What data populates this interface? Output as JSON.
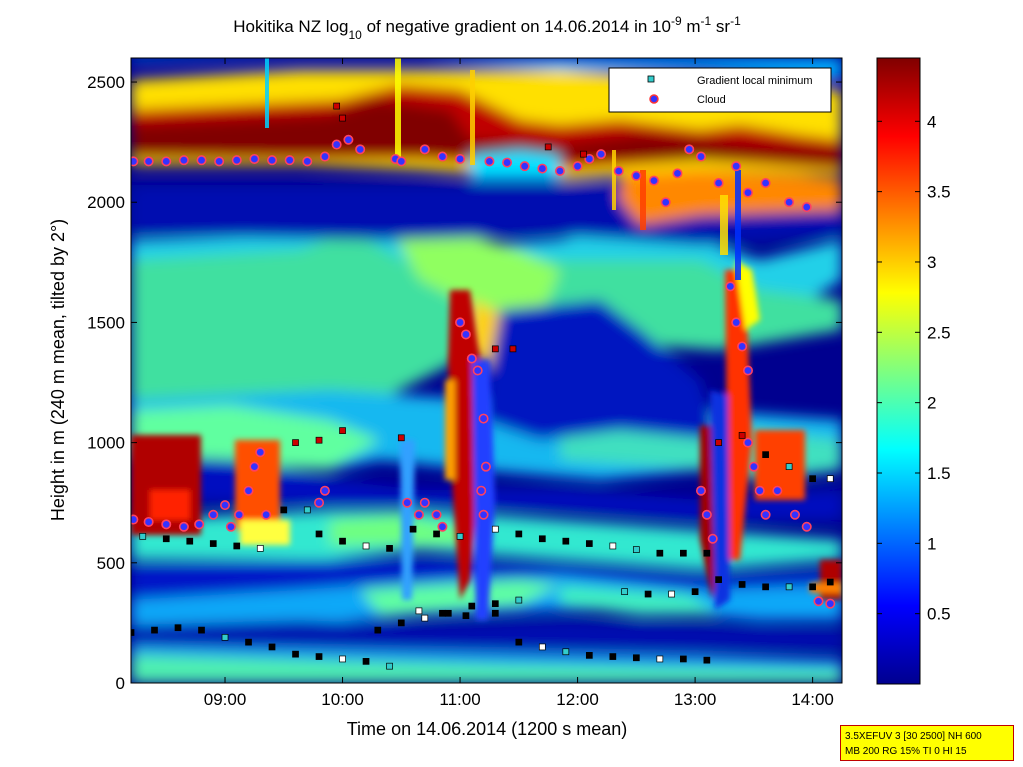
{
  "chart_data": {
    "type": "heatmap",
    "title": {
      "prefix": "Hokitika NZ log",
      "log_base": "10",
      "mid": " of negative gradient on 14.06.2014 in 10",
      "exp1": "-9",
      "unit1": " m",
      "exp2": "-1",
      "unit2": " sr",
      "exp3": "-1"
    },
    "xlabel": "Time on 14.06.2014 (1200 s mean)",
    "ylabel": "Height in m (240 m mean, tilted by 2°)",
    "x_range_hours": [
      8.2,
      14.25
    ],
    "y_range_m": [
      0,
      2600
    ],
    "x_ticks": [
      {
        "value": 9,
        "label": "09:00"
      },
      {
        "value": 10,
        "label": "10:00"
      },
      {
        "value": 11,
        "label": "11:00"
      },
      {
        "value": 12,
        "label": "12:00"
      },
      {
        "value": 13,
        "label": "13:00"
      },
      {
        "value": 14,
        "label": "14:00"
      }
    ],
    "y_ticks": [
      {
        "value": 0,
        "label": "0"
      },
      {
        "value": 500,
        "label": "500"
      },
      {
        "value": 1000,
        "label": "1000"
      },
      {
        "value": 1500,
        "label": "1500"
      },
      {
        "value": 2000,
        "label": "2000"
      },
      {
        "value": 2500,
        "label": "2500"
      }
    ],
    "colorbar": {
      "range": [
        0,
        4.45
      ],
      "ticks": [
        {
          "value": 0.5,
          "label": "0.5"
        },
        {
          "value": 1,
          "label": "1"
        },
        {
          "value": 1.5,
          "label": "1.5"
        },
        {
          "value": 2,
          "label": "2"
        },
        {
          "value": 2.5,
          "label": "2.5"
        },
        {
          "value": 3,
          "label": "3"
        },
        {
          "value": 3.5,
          "label": "3.5"
        },
        {
          "value": 4,
          "label": "4"
        }
      ],
      "colormap": "jet"
    },
    "legend": {
      "placement": "top-right",
      "entries": [
        {
          "label": "Gradient local minimum",
          "marker": "square",
          "color": "#33cccc"
        },
        {
          "label": "Cloud",
          "marker": "circle",
          "color": "#3333ff",
          "edge": "#ff3333"
        }
      ]
    },
    "series": [
      {
        "name": "Cloud",
        "points": [
          [
            8.22,
            2170
          ],
          [
            8.35,
            2170
          ],
          [
            8.5,
            2170
          ],
          [
            8.65,
            2175
          ],
          [
            8.8,
            2175
          ],
          [
            8.95,
            2170
          ],
          [
            9.1,
            2175
          ],
          [
            9.25,
            2180
          ],
          [
            9.4,
            2175
          ],
          [
            9.55,
            2175
          ],
          [
            9.7,
            2170
          ],
          [
            9.85,
            2190
          ],
          [
            9.95,
            2240
          ],
          [
            10.05,
            2260
          ],
          [
            10.15,
            2220
          ],
          [
            10.45,
            2180
          ],
          [
            10.5,
            2170
          ],
          [
            10.7,
            2220
          ],
          [
            10.85,
            2190
          ],
          [
            11.0,
            2180
          ],
          [
            11.25,
            2170
          ],
          [
            11.4,
            2165
          ],
          [
            11.55,
            2150
          ],
          [
            11.7,
            2140
          ],
          [
            11.85,
            2130
          ],
          [
            12.0,
            2150
          ],
          [
            12.1,
            2180
          ],
          [
            12.2,
            2200
          ],
          [
            12.35,
            2130
          ],
          [
            12.5,
            2110
          ],
          [
            12.65,
            2090
          ],
          [
            12.75,
            2000
          ],
          [
            12.85,
            2120
          ],
          [
            12.95,
            2220
          ],
          [
            13.05,
            2190
          ],
          [
            13.2,
            2080
          ],
          [
            13.35,
            2150
          ],
          [
            13.45,
            2040
          ],
          [
            13.6,
            2080
          ],
          [
            13.8,
            2000
          ],
          [
            13.95,
            1980
          ],
          [
            8.22,
            680
          ],
          [
            8.35,
            670
          ],
          [
            8.5,
            660
          ],
          [
            8.65,
            650
          ],
          [
            8.78,
            660
          ],
          [
            8.9,
            700
          ],
          [
            9.0,
            740
          ],
          [
            9.05,
            650
          ],
          [
            9.12,
            700
          ],
          [
            9.2,
            800
          ],
          [
            9.25,
            900
          ],
          [
            9.3,
            960
          ],
          [
            9.35,
            700
          ],
          [
            9.8,
            750
          ],
          [
            9.85,
            800
          ],
          [
            10.55,
            750
          ],
          [
            10.65,
            700
          ],
          [
            10.7,
            750
          ],
          [
            10.8,
            700
          ],
          [
            10.85,
            650
          ],
          [
            11.0,
            1500
          ],
          [
            11.05,
            1450
          ],
          [
            11.1,
            1350
          ],
          [
            11.15,
            1300
          ],
          [
            11.2,
            1100
          ],
          [
            11.22,
            900
          ],
          [
            11.18,
            800
          ],
          [
            11.2,
            700
          ],
          [
            13.05,
            800
          ],
          [
            13.1,
            700
          ],
          [
            13.15,
            600
          ],
          [
            13.3,
            1650
          ],
          [
            13.35,
            1500
          ],
          [
            13.4,
            1400
          ],
          [
            13.45,
            1300
          ],
          [
            13.45,
            1000
          ],
          [
            13.5,
            900
          ],
          [
            13.55,
            800
          ],
          [
            13.6,
            700
          ],
          [
            13.7,
            800
          ],
          [
            13.85,
            700
          ],
          [
            13.95,
            650
          ],
          [
            14.05,
            340
          ],
          [
            14.15,
            330
          ]
        ]
      },
      {
        "name": "Gradient local minimum",
        "points": [
          [
            8.3,
            610
          ],
          [
            8.5,
            600
          ],
          [
            8.7,
            590
          ],
          [
            8.9,
            580
          ],
          [
            9.1,
            570
          ],
          [
            9.3,
            560
          ],
          [
            9.5,
            720
          ],
          [
            9.7,
            720
          ],
          [
            9.8,
            620
          ],
          [
            10.0,
            590
          ],
          [
            10.2,
            570
          ],
          [
            10.4,
            560
          ],
          [
            10.6,
            640
          ],
          [
            10.8,
            620
          ],
          [
            11.0,
            610
          ],
          [
            11.3,
            640
          ],
          [
            11.5,
            620
          ],
          [
            11.7,
            600
          ],
          [
            11.9,
            590
          ],
          [
            12.1,
            580
          ],
          [
            12.3,
            570
          ],
          [
            12.5,
            555
          ],
          [
            12.7,
            540
          ],
          [
            12.9,
            540
          ],
          [
            13.1,
            540
          ],
          [
            13.2,
            1000
          ],
          [
            13.4,
            1030
          ],
          [
            13.6,
            950
          ],
          [
            13.8,
            900
          ],
          [
            14.0,
            850
          ],
          [
            14.15,
            850
          ],
          [
            8.2,
            210
          ],
          [
            8.4,
            220
          ],
          [
            8.6,
            230
          ],
          [
            8.8,
            220
          ],
          [
            9.0,
            190
          ],
          [
            9.2,
            170
          ],
          [
            9.4,
            150
          ],
          [
            9.6,
            120
          ],
          [
            9.8,
            110
          ],
          [
            10.0,
            100
          ],
          [
            10.2,
            90
          ],
          [
            10.4,
            70
          ],
          [
            10.3,
            220
          ],
          [
            10.5,
            250
          ],
          [
            10.7,
            270
          ],
          [
            10.9,
            290
          ],
          [
            11.1,
            320
          ],
          [
            11.3,
            330
          ],
          [
            11.5,
            345
          ],
          [
            10.65,
            300
          ],
          [
            10.85,
            290
          ],
          [
            11.05,
            280
          ],
          [
            11.3,
            290
          ],
          [
            11.5,
            170
          ],
          [
            11.7,
            150
          ],
          [
            11.9,
            130
          ],
          [
            12.1,
            115
          ],
          [
            12.3,
            110
          ],
          [
            12.5,
            105
          ],
          [
            12.7,
            100
          ],
          [
            12.9,
            100
          ],
          [
            13.1,
            95
          ],
          [
            12.4,
            380
          ],
          [
            12.6,
            370
          ],
          [
            12.8,
            370
          ],
          [
            13.0,
            380
          ],
          [
            13.2,
            430
          ],
          [
            13.4,
            410
          ],
          [
            13.6,
            400
          ],
          [
            13.8,
            400
          ],
          [
            14.0,
            400
          ],
          [
            14.15,
            420
          ],
          [
            9.6,
            1000
          ],
          [
            9.8,
            1010
          ],
          [
            10.0,
            1050
          ],
          [
            10.5,
            1020
          ],
          [
            11.3,
            1390
          ],
          [
            11.45,
            1390
          ],
          [
            12.05,
            2200
          ],
          [
            11.75,
            2230
          ],
          [
            9.95,
            2400
          ],
          [
            10.0,
            2350
          ]
        ]
      }
    ],
    "field_description": "log10 negative gradient intensity"
  },
  "infobox": {
    "line1": "3.5XEFUV 3 [30 2500] NH 600",
    "line2": "MB 200 RG 15% TI 0 HI 15"
  }
}
